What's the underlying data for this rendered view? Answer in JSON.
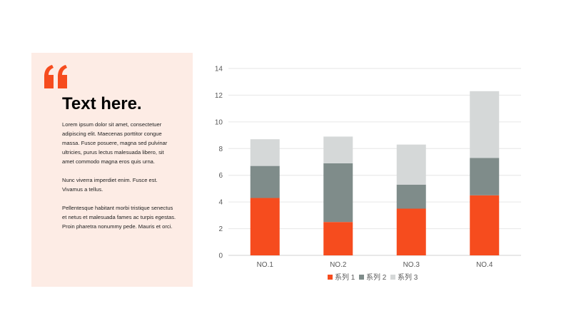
{
  "panel": {
    "title": "Text here.",
    "paragraphs": [
      "Lorem ipsum dolor sit amet, consectetuer adipiscing elit. Maecenas porttitor congue massa. Fusce posuere, magna sed pulvinar ultricies, purus lectus malesuada libero, sit amet commodo magna eros quis urna.",
      "Nunc viverra imperdiet enim. Fusce est. Vivamus a tellus.",
      "Pellentesque habitant morbi tristique senectus et netus et malesuada fames ac turpis egestas. Proin pharetra nonummy pede. Mauris et orci."
    ],
    "background_color": "#fdece5",
    "accent_color": "#f64c1e",
    "quote_icon": "quote-icon"
  },
  "chart_data": {
    "type": "bar",
    "stacked": true,
    "categories": [
      "NO.1",
      "NO.2",
      "NO.3",
      "NO.4"
    ],
    "series": [
      {
        "name": "系列 1",
        "values": [
          4.3,
          2.5,
          3.5,
          4.5
        ],
        "color": "#f64c1e"
      },
      {
        "name": "系列 2",
        "values": [
          2.4,
          4.4,
          1.8,
          2.8
        ],
        "color": "#7f8c8a"
      },
      {
        "name": "系列 3",
        "values": [
          2.0,
          2.0,
          3.0,
          5.0
        ],
        "color": "#d5d8d8"
      }
    ],
    "ylim": [
      0,
      14
    ],
    "yticks": [
      0,
      2,
      4,
      6,
      8,
      10,
      12,
      14
    ],
    "grid": true,
    "legend": "bottom"
  }
}
